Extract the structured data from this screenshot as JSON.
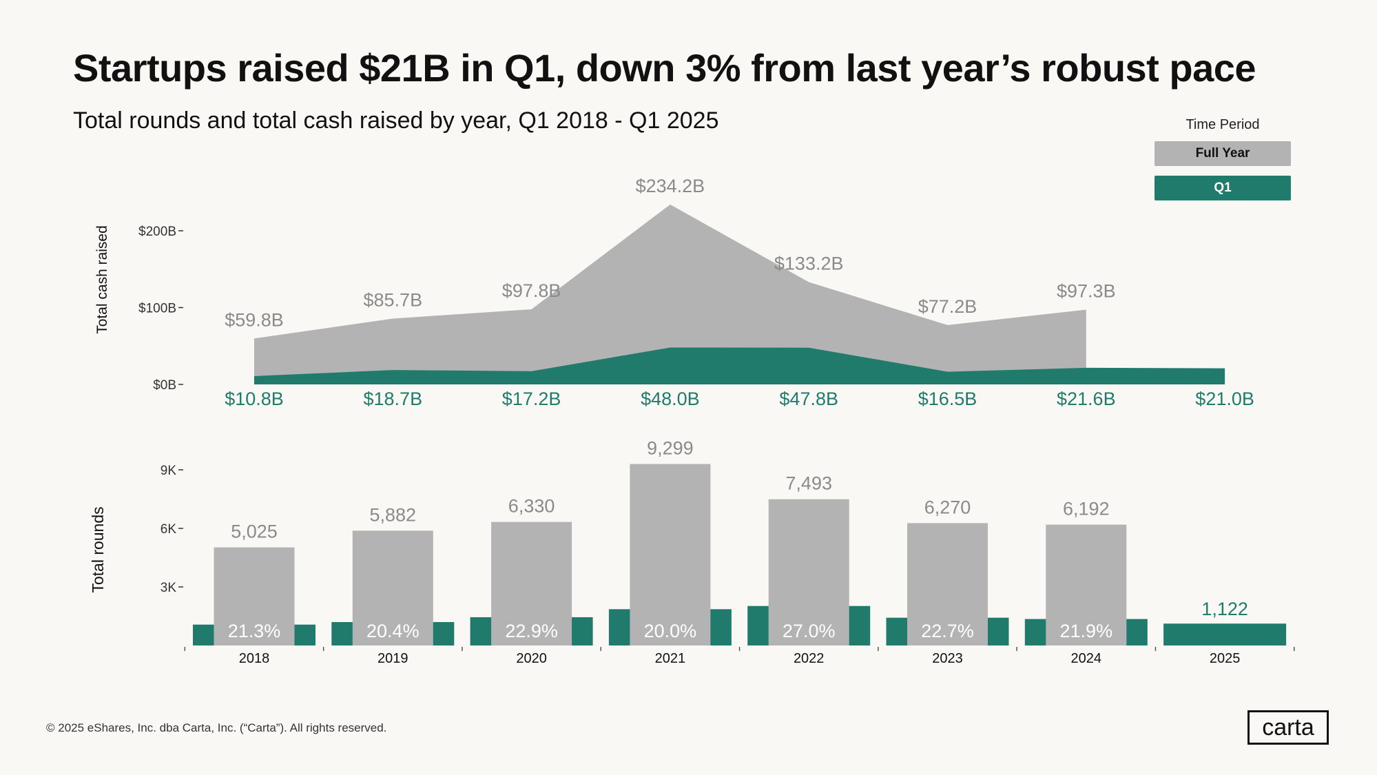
{
  "header": {
    "title": "Startups raised $21B in Q1, down 3% from last year’s robust pace",
    "subtitle": "Total rounds and total cash raised by year, Q1 2018 - Q1 2025"
  },
  "legend": {
    "title": "Time Period",
    "items": [
      {
        "label": "Full Year",
        "color": "#b3b3b3"
      },
      {
        "label": "Q1",
        "color": "#207b6c"
      }
    ]
  },
  "footer": {
    "copyright": "© 2025 eShares, Inc. dba Carta, Inc. (“Carta”). All rights reserved.",
    "logo": "carta"
  },
  "chart_data": [
    {
      "type": "area",
      "ylabel": "Total cash raised",
      "ylim": [
        0,
        240
      ],
      "yticks": [
        "$0B",
        "$100B",
        "$200B"
      ],
      "ytick_values": [
        0,
        100,
        200
      ],
      "categories": [
        "2018",
        "2019",
        "2020",
        "2021",
        "2022",
        "2023",
        "2024",
        "2025"
      ],
      "series": [
        {
          "name": "Full Year",
          "color": "#b3b3b3",
          "values": [
            59.8,
            85.7,
            97.8,
            234.2,
            133.2,
            77.2,
            97.3,
            null
          ],
          "labels": [
            "$59.8B",
            "$85.7B",
            "$97.8B",
            "$234.2B",
            "$133.2B",
            "$77.2B",
            "$97.3B",
            ""
          ]
        },
        {
          "name": "Q1",
          "color": "#207b6c",
          "values": [
            10.8,
            18.7,
            17.2,
            48.0,
            47.8,
            16.5,
            21.6,
            21.0
          ],
          "labels": [
            "$10.8B",
            "$18.7B",
            "$17.2B",
            "$48.0B",
            "$47.8B",
            "$16.5B",
            "$21.6B",
            "$21.0B"
          ]
        }
      ]
    },
    {
      "type": "bar",
      "ylabel": "Total rounds",
      "ylim": [
        0,
        10000
      ],
      "yticks": [
        "3K",
        "6K",
        "9K"
      ],
      "ytick_values": [
        3000,
        6000,
        9000
      ],
      "categories": [
        "2018",
        "2019",
        "2020",
        "2021",
        "2022",
        "2023",
        "2024",
        "2025"
      ],
      "series": [
        {
          "name": "Full Year",
          "color": "#b3b3b3",
          "values": [
            5025,
            5882,
            6330,
            9299,
            7493,
            6270,
            6192,
            null
          ],
          "labels": [
            "5,025",
            "5,882",
            "6,330",
            "9,299",
            "7,493",
            "6,270",
            "6,192",
            ""
          ]
        },
        {
          "name": "Q1",
          "color": "#207b6c",
          "values": [
            1070,
            1200,
            1450,
            1860,
            2023,
            1423,
            1356,
            1122
          ],
          "labels": [
            "21.3%",
            "20.4%",
            "22.9%",
            "20.0%",
            "27.0%",
            "22.7%",
            "21.9%",
            "1,122"
          ]
        }
      ]
    }
  ]
}
